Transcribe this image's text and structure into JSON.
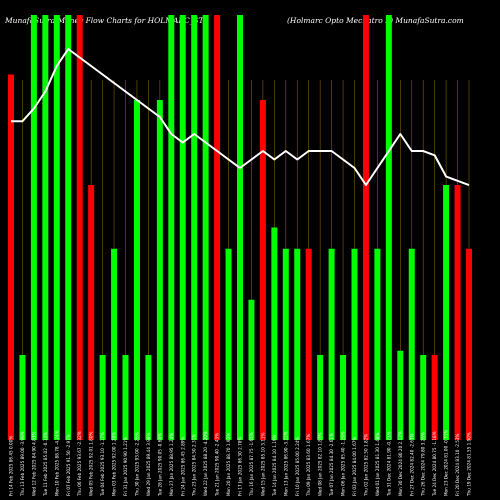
{
  "header": {
    "left_title": "MunafaSutra Money Flow  Charts for HOLMARC_ST",
    "right_title": "(Holmarc Opto  Mechatro  L) MunafaSutra.com"
  },
  "chart_data": {
    "type": "bar",
    "title": "MunafaSutra Money Flow  Charts for HOLMARC_ST",
    "subtitle": "(Holmarc Opto  Mechatro  L) MunafaSutra.com",
    "ylim": [
      0,
      100
    ],
    "categories": [
      "Fri 14 Feb 2025 86.45 0.00%",
      "Thu 13 Feb 2025 89.00 -3.99%",
      "Wed 12 Feb 2025 84.90 4.83%",
      "Tue 11 Feb 2025 85.02 -0.14%",
      "Mon 10 Feb 2025 88.78 -4.24%",
      "Fri 07 Feb 2025 91.50 -2.97%",
      "Thu 06 Feb 2025 93.67 -2.32%",
      "Wed 05 Feb 2025 92.01 1.80%",
      "Tue 04 Feb 2025 93.10 -1.17%",
      "Mon 03 Feb 2025 92.00 1.20%",
      "Fri 31 Jan 2025 90.90 1.21%",
      "Thu 30 Jan 2025 93.00 -2.26%",
      "Wed 29 Jan 2025 89.44 3.98%",
      "Tue 28 Jan 2025 90.05 -0.68%",
      "Mon 27 Jan 2025 88.95 1.24%",
      "Fri 24 Jan 2025 86.45 2.89%",
      "Thu 23 Jan 2025 84.50 2.31%",
      "Wed 22 Jan 2025 88.20 -4.20%",
      "Tue 21 Jan 2025 90.40 -2.43%",
      "Mon 20 Jan 2025 88.70 1.92%",
      "Fri 17 Jan 2025 86.30 2.78%",
      "Thu 16 Jan 2025 87.75 -1.65%",
      "Wed 15 Jan 2025 85.10 3.11%",
      "Tue 14 Jan 2025 84.10 1.19%",
      "Mon 13 Jan 2025 86.90 -3.22%",
      "Fri 10 Jan 2025 85.00 2.24%",
      "Thu 09 Jan 2025 83.60 1.67%",
      "Wed 08 Jan 2025 82.10 1.83%",
      "Tue 07 Jan 2025 84.30 -2.61%",
      "Mon 06 Jan 2025 85.40 -1.29%",
      "Fri 03 Jan 2025 84.00 1.67%",
      "Thu 02 Jan 2025 82.50 1.82%",
      "Wed 01 Jan 2025 81.30 1.48%",
      "Tue 31 Dec 2024 81.90 -0.73%",
      "Mon 30 Dec 2024 80.20 2.12%",
      "Fri 27 Dec 2024 82.40 -2.67%",
      "Thu 26 Dec 2024 79.80 3.26%",
      "Tue 24 Dec 2024 80.75 -1.18%",
      "Mon 23 Dec 2024 81.00 -0.31%",
      "Fri 20 Dec 2024 83.10 -2.53%",
      "Thu 19 Dec 2024 81.55 1.90%"
    ],
    "colors": [
      "red",
      "green",
      "green",
      "green",
      "green",
      "green",
      "red",
      "red",
      "green",
      "green",
      "green",
      "green",
      "green",
      "green",
      "green",
      "green",
      "green",
      "green",
      "red",
      "green",
      "green",
      "green",
      "red",
      "green",
      "green",
      "green",
      "red",
      "green",
      "green",
      "green",
      "green",
      "red",
      "green",
      "green",
      "green",
      "green",
      "green",
      "red",
      "green",
      "red",
      "red"
    ],
    "values": [
      86,
      20,
      100,
      100,
      100,
      100,
      100,
      60,
      20,
      45,
      20,
      80,
      20,
      80,
      100,
      100,
      100,
      100,
      100,
      45,
      100,
      33,
      80,
      50,
      45,
      45,
      45,
      20,
      45,
      20,
      45,
      100,
      45,
      100,
      21,
      45,
      20,
      20,
      60,
      60,
      45
    ],
    "line": [
      75,
      75,
      78,
      82,
      88,
      92,
      90,
      88,
      86,
      84,
      82,
      80,
      78,
      76,
      72,
      70,
      72,
      70,
      68,
      66,
      64,
      66,
      68,
      66,
      68,
      66,
      68,
      68,
      68,
      66,
      64,
      60,
      64,
      68,
      72,
      68,
      68,
      67,
      62,
      61,
      60
    ],
    "colors_hex": {
      "up": "#00ff00",
      "down": "#ff0000",
      "line": "#ffffff",
      "grid": "#b8860b",
      "background": "#000000"
    }
  }
}
